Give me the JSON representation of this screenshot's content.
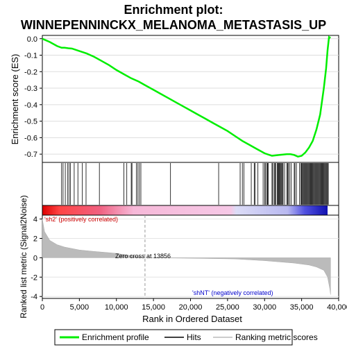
{
  "chart_data": {
    "type": "line",
    "title_line1": "Enrichment plot:",
    "title_line2": "WINNEPENNINCKX_MELANOMA_METASTASIS_UP",
    "ylabel_top": "Enrichment score (ES)",
    "ylabel_bottom": "Ranked list metric (Signal2Noise)",
    "xlabel": "Rank in Ordered Dataset",
    "xlim": [
      0,
      40000
    ],
    "x_ticks": [
      0,
      5000,
      10000,
      15000,
      20000,
      25000,
      30000,
      35000,
      40000
    ],
    "x_tick_labels": [
      "0",
      "5,000",
      "10,000",
      "15,000",
      "20,000",
      "25,000",
      "30,000",
      "35,000",
      "40,000"
    ],
    "es_ylim": [
      -0.75,
      0.02
    ],
    "es_ticks": [
      0.0,
      -0.1,
      -0.2,
      -0.3,
      -0.4,
      -0.5,
      -0.6,
      -0.7
    ],
    "es_tick_labels": [
      "0.0",
      "-0.1",
      "-0.2",
      "-0.3",
      "-0.4",
      "-0.5",
      "-0.6",
      "-0.7"
    ],
    "metric_ylim": [
      -4.2,
      4.4
    ],
    "metric_ticks": [
      4,
      2,
      0,
      -2,
      -4
    ],
    "metric_tick_labels": [
      "4",
      "2",
      "0",
      "-2",
      "-4"
    ],
    "series": [
      {
        "name": "Enrichment profile",
        "color": "#00ee00",
        "x": [
          0,
          1000,
          2000,
          2600,
          3000,
          3500,
          4000,
          5000,
          6000,
          7000,
          8000,
          9000,
          10000,
          11000,
          12000,
          13000,
          14000,
          15000,
          16000,
          17000,
          18000,
          19000,
          20000,
          21000,
          22000,
          23000,
          24000,
          25000,
          26000,
          27000,
          28000,
          29000,
          30000,
          31000,
          32000,
          33000,
          33500,
          34000,
          34500,
          35000,
          35500,
          36000,
          36500,
          37000,
          37500,
          38000,
          38300,
          38500,
          38700,
          38900
        ],
        "y": [
          0.0,
          -0.02,
          -0.045,
          -0.055,
          -0.055,
          -0.058,
          -0.06,
          -0.075,
          -0.09,
          -0.11,
          -0.135,
          -0.16,
          -0.19,
          -0.215,
          -0.24,
          -0.26,
          -0.285,
          -0.31,
          -0.335,
          -0.36,
          -0.385,
          -0.41,
          -0.435,
          -0.46,
          -0.485,
          -0.51,
          -0.535,
          -0.56,
          -0.59,
          -0.62,
          -0.645,
          -0.67,
          -0.695,
          -0.71,
          -0.705,
          -0.7,
          -0.7,
          -0.705,
          -0.715,
          -0.71,
          -0.69,
          -0.66,
          -0.62,
          -0.55,
          -0.46,
          -0.3,
          -0.18,
          -0.07,
          0.01,
          0.005
        ]
      }
    ],
    "hits": [
      2600,
      2800,
      3100,
      3400,
      3600,
      3800,
      4300,
      4800,
      5400,
      5900,
      7700,
      11000,
      11400,
      12000,
      12100,
      12700,
      12900,
      13100,
      13300,
      17300,
      23800,
      26700,
      27000,
      27200,
      28200,
      28600,
      28700,
      29100,
      29800,
      30000,
      30100,
      30300,
      30400,
      30500,
      31000,
      31100,
      31300,
      31400,
      31500,
      31700,
      31800,
      31900,
      32000,
      32100,
      32200,
      32300,
      32400,
      32500,
      32700,
      33000,
      33100,
      33200,
      33400,
      33600,
      34000,
      34100,
      34300,
      34700,
      34900,
      35000,
      35100,
      35200,
      35300,
      35400,
      35500,
      35600,
      35700,
      35800,
      35900,
      36000,
      36100,
      36200,
      36300,
      36400,
      36500,
      36600,
      36700,
      36800,
      36900,
      37000,
      37100,
      37200,
      37300,
      37400,
      37500,
      37600,
      37700,
      37800,
      37900,
      38000,
      38100,
      38200,
      38300,
      38400,
      38500,
      38600
    ],
    "metric_profile": {
      "x": [
        0,
        300,
        1000,
        2000,
        3000,
        5000,
        7000,
        9000,
        10000,
        13856,
        20000,
        26000,
        30000,
        34000,
        36000,
        37000,
        38000,
        38500,
        38800,
        38900
      ],
      "y": [
        4.0,
        2.7,
        1.8,
        1.35,
        1.1,
        0.8,
        0.65,
        0.52,
        0.45,
        0.0,
        -0.05,
        -0.12,
        -0.3,
        -0.55,
        -0.75,
        -0.95,
        -1.3,
        -2.0,
        -3.2,
        -3.8
      ]
    },
    "zero_cross_label": "Zero cross at 13856",
    "zero_cross": 13856,
    "pos_label": "'sh2' (positively correlated)",
    "neg_label": "'shNT' (negatively correlated)",
    "legend": [
      {
        "label": "Enrichment profile",
        "color": "#00ee00"
      },
      {
        "label": "Hits",
        "color": "#000000"
      },
      {
        "label": "Ranking metric scores",
        "color": "#bbbbbb"
      }
    ],
    "colors": {
      "es_line": "#00ee00",
      "metric_fill": "#bbbbbb",
      "pos_text": "#cc0000",
      "neg_text": "#0000cc"
    },
    "legend_position": "bottom"
  }
}
